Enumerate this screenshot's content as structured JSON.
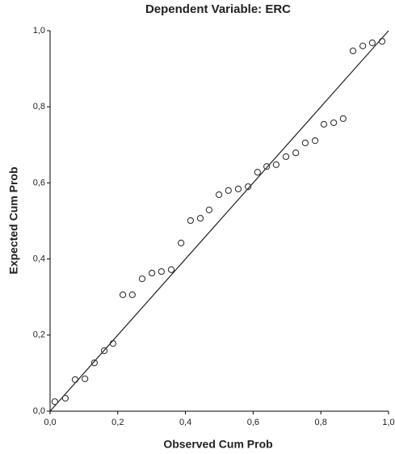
{
  "chart_data": {
    "type": "scatter",
    "title": "Dependent Variable: ERC",
    "x_label": "Observed Cum Prob",
    "y_label": "Expected Cum Prob",
    "xlim": [
      0,
      1
    ],
    "ylim": [
      0,
      1
    ],
    "xticks": [
      {
        "value": 0,
        "label": "0,0"
      },
      {
        "value": 0.2,
        "label": "0,2"
      },
      {
        "value": 0.4,
        "label": "0,4"
      },
      {
        "value": 0.6,
        "label": "0,6"
      },
      {
        "value": 0.8,
        "label": "0,8"
      },
      {
        "value": 1,
        "label": "1,0"
      }
    ],
    "yticks": [
      {
        "value": 0,
        "label": "0,0"
      },
      {
        "value": 0.2,
        "label": "0,2"
      },
      {
        "value": 0.4,
        "label": "0,4"
      },
      {
        "value": 0.6,
        "label": "0,6"
      },
      {
        "value": 0.8,
        "label": "0,8"
      },
      {
        "value": 1,
        "label": "1,0"
      }
    ],
    "color": "#333333",
    "x": [
      0.014,
      0.045,
      0.074,
      0.103,
      0.131,
      0.16,
      0.186,
      0.215,
      0.243,
      0.272,
      0.301,
      0.329,
      0.358,
      0.387,
      0.415,
      0.444,
      0.47,
      0.499,
      0.527,
      0.556,
      0.585,
      0.613,
      0.64,
      0.668,
      0.697,
      0.726,
      0.754,
      0.783,
      0.809,
      0.838,
      0.866,
      0.895,
      0.924,
      0.952,
      0.981
    ],
    "values": [
      0.025,
      0.034,
      0.083,
      0.085,
      0.127,
      0.159,
      0.178,
      0.306,
      0.306,
      0.348,
      0.363,
      0.367,
      0.372,
      0.442,
      0.501,
      0.507,
      0.529,
      0.569,
      0.58,
      0.584,
      0.59,
      0.628,
      0.643,
      0.648,
      0.669,
      0.679,
      0.705,
      0.711,
      0.754,
      0.758,
      0.769,
      0.947,
      0.96,
      0.968,
      0.972
    ]
  }
}
